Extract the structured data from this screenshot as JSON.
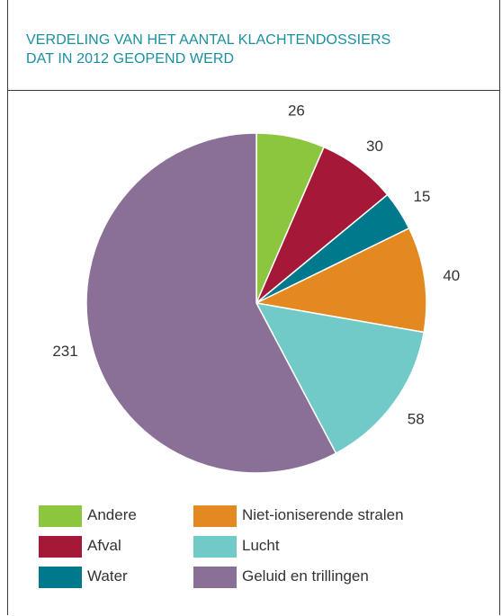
{
  "title_lines": [
    "VERDELING VAN HET AANTAL KLACHTENDOSSIERS",
    "DAT IN 2012 GEOPEND WERD"
  ],
  "chart_data": {
    "type": "pie",
    "title": "VERDELING VAN HET AANTAL KLACHTENDOSSIERS DAT IN 2012 GEOPEND WERD",
    "start": "12 o'clock, clockwise",
    "slices": [
      {
        "label": "Andere",
        "value": 26,
        "color": "#8cc63f"
      },
      {
        "label": "Afval",
        "value": 30,
        "color": "#a51837"
      },
      {
        "label": "Water",
        "value": 15,
        "color": "#00798c"
      },
      {
        "label": "Niet-ioniserende stralen",
        "value": 40,
        "color": "#e4891f"
      },
      {
        "label": "Lucht",
        "value": 58,
        "color": "#72cac8"
      },
      {
        "label": "Geluid en trillingen",
        "value": 231,
        "color": "#8a6f96"
      }
    ],
    "legend": {
      "columns": [
        [
          "Andere",
          "Afval",
          "Water"
        ],
        [
          "Niet-ioniserende stralen",
          "Lucht",
          "Geluid en trillingen"
        ]
      ]
    }
  }
}
